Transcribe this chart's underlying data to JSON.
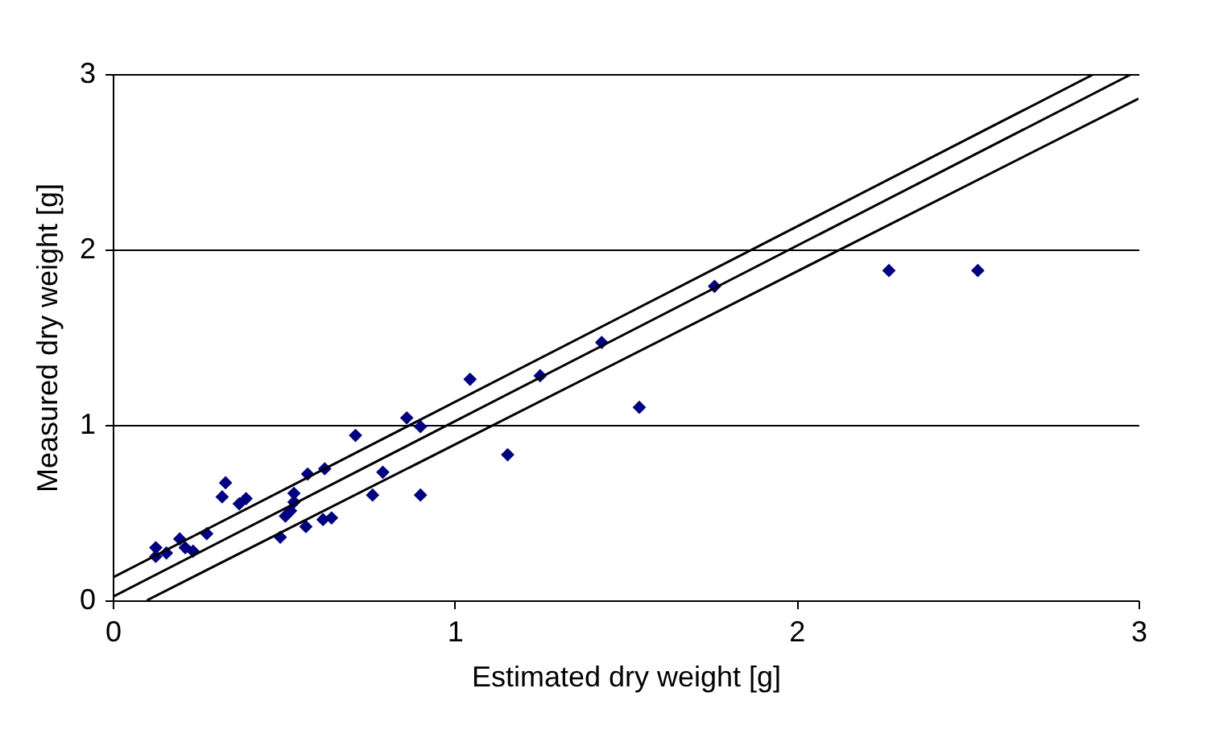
{
  "chart_data": {
    "type": "scatter",
    "xlabel": "Estimated dry weight [g]",
    "ylabel": "Measured dry weight [g]",
    "xlim": [
      0,
      3
    ],
    "ylim": [
      0,
      3
    ],
    "xticks": [
      0,
      1,
      2,
      3
    ],
    "yticks": [
      0,
      1,
      2,
      3
    ],
    "grid": "y",
    "series": [
      {
        "marker": "diamond",
        "color": "#000080",
        "x": [
          0.126,
          0.126,
          0.157,
          0.196,
          0.212,
          0.235,
          0.275,
          0.33,
          0.32,
          0.37,
          0.39,
          0.49,
          0.505,
          0.52,
          0.53,
          0.53,
          0.565,
          0.57,
          0.615,
          0.64,
          0.62,
          0.71,
          0.76,
          0.79,
          0.86,
          0.9,
          0.9,
          1.045,
          1.155,
          1.25,
          1.43,
          1.54,
          1.76,
          2.27,
          2.53
        ],
        "values": [
          0.3,
          0.25,
          0.27,
          0.35,
          0.3,
          0.28,
          0.38,
          0.67,
          0.59,
          0.55,
          0.58,
          0.36,
          0.48,
          0.51,
          0.56,
          0.61,
          0.42,
          0.72,
          0.46,
          0.47,
          0.75,
          0.94,
          0.6,
          0.73,
          1.04,
          0.99,
          0.6,
          1.26,
          0.83,
          1.28,
          1.47,
          1.1,
          1.79,
          1.88,
          1.88
        ]
      },
      {
        "type": "line",
        "marker": "none",
        "color": "#000000",
        "x": [
          0,
          2.87
        ],
        "values": [
          0.13,
          3
        ]
      },
      {
        "type": "line",
        "marker": "none",
        "color": "#000000",
        "x": [
          0,
          2.98
        ],
        "values": [
          0.02,
          3
        ]
      },
      {
        "type": "line",
        "marker": "none",
        "color": "#000000",
        "x": [
          0.1,
          3
        ],
        "values": [
          0,
          2.86
        ]
      }
    ]
  }
}
